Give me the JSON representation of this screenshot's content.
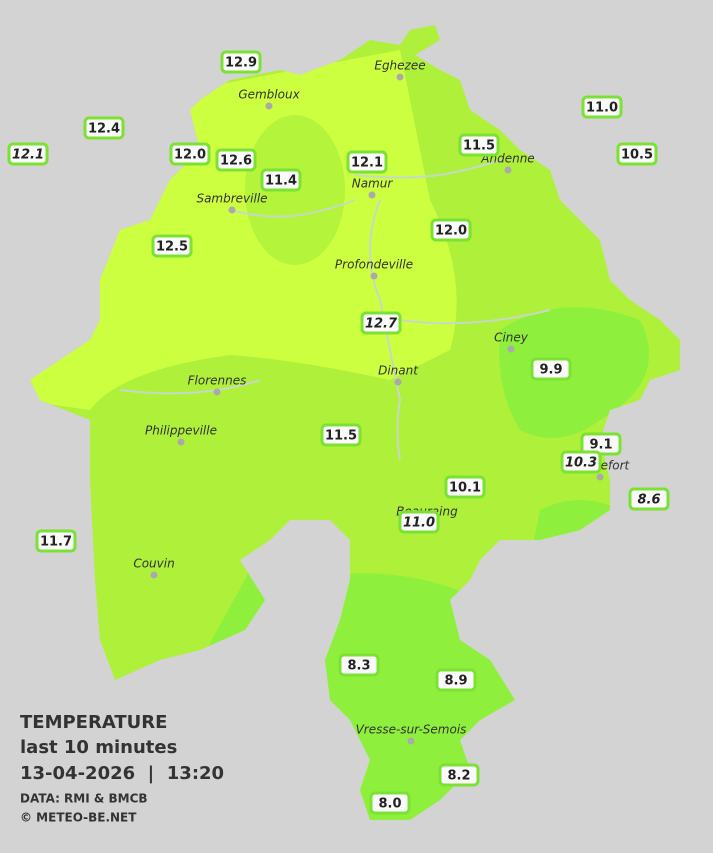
{
  "legend": {
    "title": "TEMPERATURE",
    "subtitle": "last 10 minutes",
    "timestamp": "13-04-2026  |  13:20",
    "source": "DATA: RMI & BMCB",
    "credit": "© METEO-BE.NET"
  },
  "towns": [
    "Eghezee",
    "Gembloux",
    "Andenne",
    "Namur",
    "Sambreville",
    "Profondeville",
    "Ciney",
    "Dinant",
    "Florennes",
    "Philippeville",
    "Rochefort",
    "Beauraing",
    "Couvin",
    "Vresse-sur-Semois"
  ],
  "stations": [
    {
      "value": "12.9",
      "italic": false
    },
    {
      "value": "12.4",
      "italic": false
    },
    {
      "value": "12.1",
      "italic": true
    },
    {
      "value": "12.0",
      "italic": false
    },
    {
      "value": "12.6",
      "italic": false
    },
    {
      "value": "11.4",
      "italic": false
    },
    {
      "value": "12.1",
      "italic": false
    },
    {
      "value": "11.5",
      "italic": false
    },
    {
      "value": "11.0",
      "italic": false
    },
    {
      "value": "10.5",
      "italic": false
    },
    {
      "value": "12.5",
      "italic": false
    },
    {
      "value": "12.0",
      "italic": false
    },
    {
      "value": "12.7",
      "italic": true
    },
    {
      "value": "9.9",
      "italic": false
    },
    {
      "value": "11.5",
      "italic": false
    },
    {
      "value": "9.1",
      "italic": false
    },
    {
      "value": "10.3",
      "italic": true
    },
    {
      "value": "10.1",
      "italic": false
    },
    {
      "value": "11.0",
      "italic": true
    },
    {
      "value": "8.6",
      "italic": true
    },
    {
      "value": "11.7",
      "italic": false
    },
    {
      "value": "8.3",
      "italic": false
    },
    {
      "value": "8.9",
      "italic": false
    },
    {
      "value": "8.2",
      "italic": false
    },
    {
      "value": "8.0",
      "italic": false
    }
  ]
}
